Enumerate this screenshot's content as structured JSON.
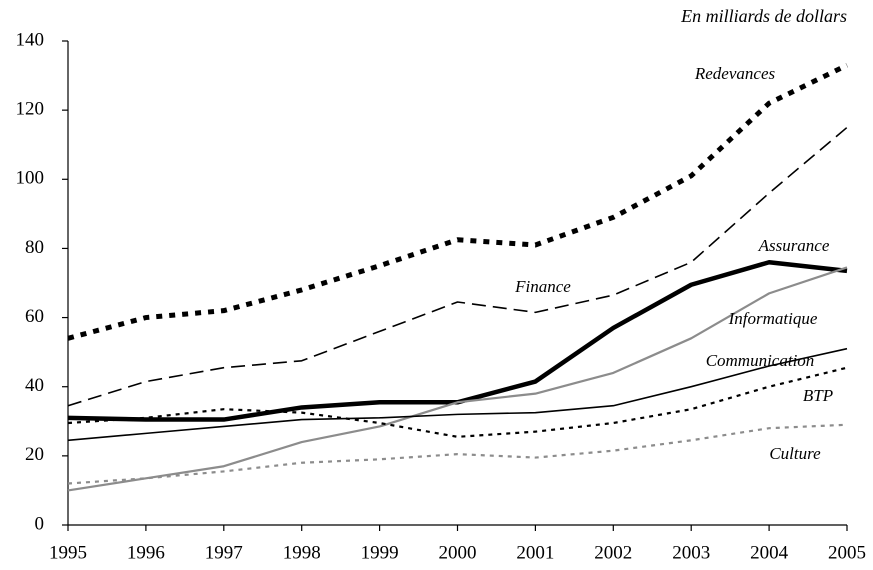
{
  "chart_data": {
    "type": "line",
    "unit_label": "En milliards de dollars",
    "x": [
      1995,
      1996,
      1997,
      1998,
      1999,
      2000,
      2001,
      2002,
      2003,
      2004,
      2005
    ],
    "xlim": [
      1995,
      2005
    ],
    "xticks": [
      1995,
      1996,
      1997,
      1998,
      1999,
      2000,
      2001,
      2002,
      2003,
      2004,
      2005
    ],
    "ylim": [
      0,
      140
    ],
    "yticks": [
      0,
      20,
      40,
      60,
      80,
      100,
      120,
      140
    ],
    "grid": false,
    "series": [
      {
        "name": "Redevances",
        "color": "#000000",
        "values": [
          54,
          60,
          62,
          68,
          75,
          82.5,
          81,
          89,
          101,
          122,
          133
        ]
      },
      {
        "name": "Finance",
        "color": "#000000",
        "values": [
          34.5,
          41.5,
          45.5,
          47.5,
          56,
          64.5,
          61.5,
          66.5,
          76,
          96,
          115
        ]
      },
      {
        "name": "Assurance",
        "color": "#000000",
        "values": [
          31,
          30.5,
          30.5,
          34,
          35.5,
          35.5,
          41.5,
          57,
          69.5,
          76,
          73.5
        ]
      },
      {
        "name": "Informatique",
        "color": "#8c8c8c",
        "values": [
          10,
          13.5,
          17,
          24,
          28.5,
          35.5,
          38,
          44,
          54,
          67,
          74.5
        ]
      },
      {
        "name": "Communication",
        "color": "#000000",
        "values": [
          24.5,
          26.5,
          28.5,
          30.5,
          31,
          32,
          32.5,
          34.5,
          40,
          46,
          51
        ]
      },
      {
        "name": "BTP",
        "color": "#000000",
        "values": [
          29.5,
          31,
          33.5,
          32.5,
          29.5,
          25.5,
          27,
          29.5,
          33.5,
          40,
          45.5
        ]
      },
      {
        "name": "Culture",
        "color": "#8c8c8c",
        "values": [
          12,
          13.5,
          15.5,
          18,
          19,
          20.5,
          19.5,
          21.5,
          24.5,
          28,
          29
        ]
      }
    ]
  }
}
